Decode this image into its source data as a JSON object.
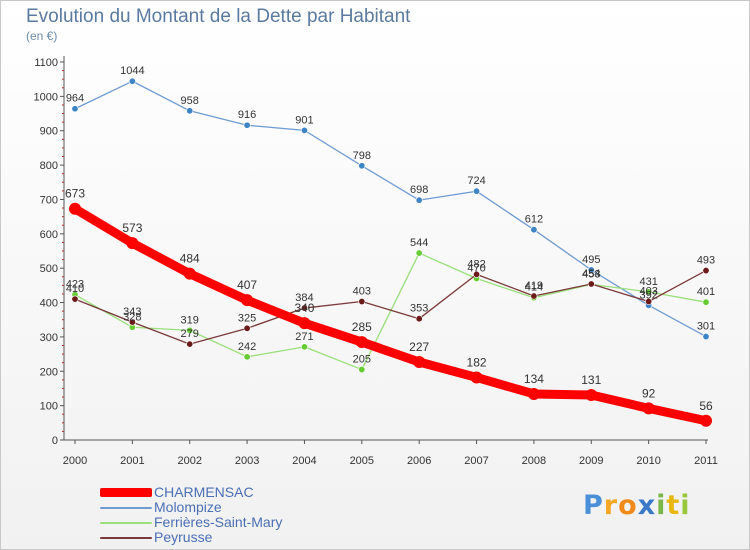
{
  "chart_data": {
    "type": "line",
    "title": "Evolution du Montant de la Dette par Habitant",
    "subtitle": "(en €)",
    "xlabel": "",
    "ylabel": "",
    "x": [
      "2000",
      "2001",
      "2002",
      "2003",
      "2004",
      "2005",
      "2006",
      "2007",
      "2008",
      "2009",
      "2010",
      "2011"
    ],
    "ylim": [
      0,
      1100
    ],
    "yticks": [
      0,
      100,
      200,
      300,
      400,
      500,
      600,
      700,
      800,
      900,
      1000,
      1100
    ],
    "grid": false,
    "legend_position": "bottom-left",
    "series": [
      {
        "name": "Molompize",
        "color": "#6e9bd2",
        "point_color": "#3d85c6",
        "values": [
          964,
          1044,
          958,
          916,
          901,
          798,
          698,
          724,
          612,
          495,
          392,
          301
        ],
        "labels": [
          "964",
          "1044",
          "958",
          "916",
          "901",
          "798",
          "698",
          "724",
          "612",
          "495",
          "392",
          "301"
        ]
      },
      {
        "name": "Ferrières-Saint-Mary",
        "color": "#99e07a",
        "point_color": "#66cc33",
        "values": [
          423,
          328,
          319,
          242,
          271,
          205,
          544,
          470,
          414,
          453,
          431,
          401
        ],
        "labels": [
          "423",
          "328",
          "319",
          "242",
          "271",
          "205",
          "544",
          "470",
          "414",
          "453",
          "431",
          "401"
        ]
      },
      {
        "name": "Peyrusse",
        "color": "#7a3a3a",
        "point_color": "#6b1a1a",
        "values": [
          410,
          343,
          279,
          325,
          384,
          403,
          353,
          482,
          419,
          454,
          403,
          493
        ],
        "labels": [
          "410",
          "343",
          "279",
          "325",
          "384",
          "403",
          "353",
          "482",
          "419",
          "454",
          "403",
          "493"
        ]
      },
      {
        "name": "CHARMENSAC",
        "color": "#ff0000",
        "point_color": "#ff0000",
        "values": [
          673,
          573,
          484,
          407,
          340,
          285,
          227,
          182,
          134,
          131,
          92,
          56
        ],
        "labels": [
          "673",
          "573",
          "484",
          "407",
          "340",
          "285",
          "227",
          "182",
          "134",
          "131",
          "92",
          "56"
        ]
      }
    ],
    "legend_order": [
      "CHARMENSAC",
      "Molompize",
      "Ferrières-Saint-Mary",
      "Peyrusse"
    ]
  },
  "logo": {
    "text": "Proxiti",
    "letters": [
      "P",
      "r",
      "o",
      "x",
      "i",
      "t",
      "i"
    ],
    "colors": [
      "#4a90d9",
      "#f5a623",
      "#f08a1c",
      "#3a78c8",
      "#7ab648",
      "#e8b810",
      "#9ac83c"
    ]
  }
}
